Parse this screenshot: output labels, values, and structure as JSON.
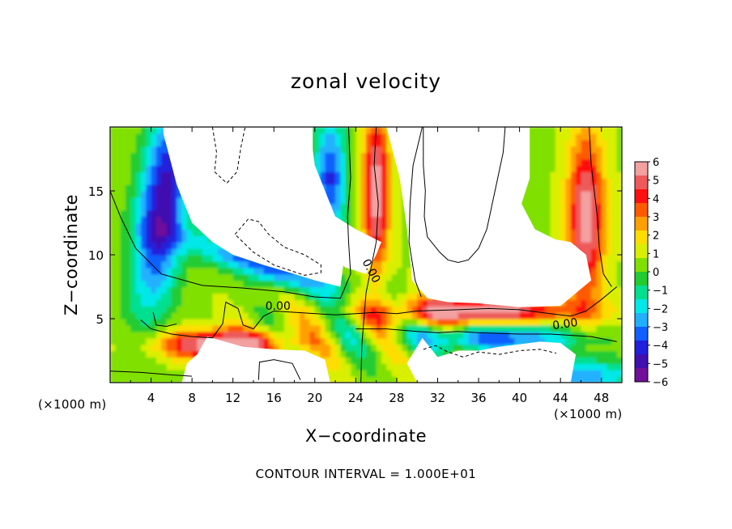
{
  "chart_data": {
    "type": "heatmap",
    "title": "zonal velocity",
    "xlabel": "X−coordinate",
    "ylabel": "Z−coordinate",
    "x_unit_left": "(×1000 m)",
    "x_unit_right": "(×1000 m)",
    "xlim": [
      0,
      50
    ],
    "ylim": [
      0,
      20
    ],
    "x_ticks": [
      4,
      8,
      12,
      16,
      20,
      24,
      28,
      32,
      36,
      40,
      44,
      48
    ],
    "y_ticks": [
      5,
      10,
      15
    ],
    "contour_label": "0.00",
    "note": "CONTOUR INTERVAL = 1.000E+01",
    "colorbar": {
      "range": [
        -6,
        6
      ],
      "ticks": [
        "6",
        "5",
        "4",
        "3",
        "2",
        "1",
        "0",
        "−1",
        "−2",
        "−3",
        "−4",
        "−5",
        "−6"
      ],
      "colors": [
        "#f2a0a0",
        "#ee5a5a",
        "#ff1010",
        "#ff5a00",
        "#ffa000",
        "#ffdd00",
        "#d8f000",
        "#80e000",
        "#20cc30",
        "#00e090",
        "#00e8e8",
        "#20b0ff",
        "#1060ff",
        "#2020dd",
        "#4010b0",
        "#70109a"
      ]
    },
    "white_regions": [
      {
        "name": "upper-left",
        "polygon": [
          [
            5,
            20
          ],
          [
            17,
            20
          ],
          [
            18,
            13
          ],
          [
            20,
            11
          ],
          [
            21.5,
            10
          ],
          [
            23,
            9
          ],
          [
            25,
            8.5
          ],
          [
            26,
            10
          ],
          [
            26.5,
            11
          ],
          [
            24,
            12
          ],
          [
            22,
            13
          ],
          [
            21,
            15
          ],
          [
            20,
            17
          ],
          [
            19.5,
            20
          ],
          [
            17,
            20
          ]
        ]
      },
      {
        "name": "upper-main",
        "polygon": [
          [
            5.2,
            19.5
          ],
          [
            6.5,
            15.5
          ],
          [
            8,
            12.5
          ],
          [
            10,
            11
          ],
          [
            12,
            10
          ],
          [
            15,
            9.2
          ],
          [
            18,
            8.5
          ],
          [
            20,
            8
          ],
          [
            22.5,
            7.5
          ],
          [
            23,
            10.5
          ],
          [
            21.5,
            13
          ],
          [
            20.5,
            15
          ],
          [
            19.8,
            17.5
          ],
          [
            19.8,
            20
          ],
          [
            5.2,
            20
          ]
        ]
      },
      {
        "name": "upper-right",
        "polygon": [
          [
            27,
            20
          ],
          [
            41,
            20
          ],
          [
            41,
            16
          ],
          [
            40.2,
            14
          ],
          [
            41.5,
            12
          ],
          [
            43.5,
            11.2
          ],
          [
            45,
            11
          ],
          [
            46.5,
            10
          ],
          [
            47,
            8
          ],
          [
            44,
            6
          ],
          [
            40,
            5.9
          ],
          [
            36,
            6.2
          ],
          [
            33,
            6.3
          ],
          [
            31,
            6.6
          ],
          [
            29.5,
            8
          ],
          [
            29,
            12
          ],
          [
            28.3,
            16
          ]
        ]
      },
      {
        "name": "lower-left",
        "polygon": [
          [
            9.5,
            3.6
          ],
          [
            13,
            2.8
          ],
          [
            16,
            2.6
          ],
          [
            19,
            2.5
          ],
          [
            21,
            1.8
          ],
          [
            21.5,
            0
          ],
          [
            7,
            0
          ],
          [
            7.5,
            1.5
          ],
          [
            8.5,
            2.2
          ]
        ]
      },
      {
        "name": "lower-right",
        "polygon": [
          [
            30.5,
            3.5
          ],
          [
            32,
            2
          ],
          [
            34,
            2.5
          ],
          [
            36,
            2.5
          ],
          [
            38,
            2.8
          ],
          [
            40,
            3
          ],
          [
            42,
            3.2
          ],
          [
            44,
            3.1
          ],
          [
            45.5,
            2.2
          ],
          [
            45,
            0
          ],
          [
            30,
            0
          ],
          [
            29,
            1.5
          ]
        ]
      }
    ]
  }
}
